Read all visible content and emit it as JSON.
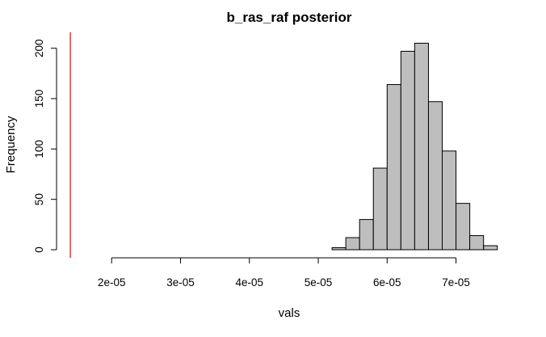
{
  "chart_data": {
    "type": "bar",
    "title": "b_ras_raf posterior",
    "xlabel": "vals",
    "ylabel": "Frequency",
    "bar_color": "#bebebe",
    "reference_line_color": "#df2020",
    "reference_line_x": 1.4e-05,
    "xlim": [
      1.2e-05,
      7.65e-05
    ],
    "ylim": [
      0,
      215
    ],
    "x_ticks": [
      2e-05,
      3e-05,
      4e-05,
      5e-05,
      6e-05,
      7e-05
    ],
    "x_tick_labels": [
      "2e-05",
      "3e-05",
      "4e-05",
      "5e-05",
      "6e-05",
      "7e-05"
    ],
    "y_ticks": [
      0,
      50,
      100,
      150,
      200
    ],
    "y_tick_labels": [
      "0",
      "50",
      "100",
      "150",
      "200"
    ],
    "bin_width": 2e-06,
    "bins": [
      {
        "start": 5.2e-05,
        "end": 5.4e-05,
        "count": 2
      },
      {
        "start": 5.4e-05,
        "end": 5.6e-05,
        "count": 12
      },
      {
        "start": 5.6e-05,
        "end": 5.8e-05,
        "count": 30
      },
      {
        "start": 5.8e-05,
        "end": 6e-05,
        "count": 81
      },
      {
        "start": 6e-05,
        "end": 6.2e-05,
        "count": 164
      },
      {
        "start": 6.2e-05,
        "end": 6.4e-05,
        "count": 197
      },
      {
        "start": 6.4e-05,
        "end": 6.6e-05,
        "count": 205
      },
      {
        "start": 6.6e-05,
        "end": 6.8e-05,
        "count": 147
      },
      {
        "start": 6.8e-05,
        "end": 7e-05,
        "count": 98
      },
      {
        "start": 7e-05,
        "end": 7.2e-05,
        "count": 46
      },
      {
        "start": 7.2e-05,
        "end": 7.4e-05,
        "count": 14
      },
      {
        "start": 7.4e-05,
        "end": 7.6e-05,
        "count": 4
      }
    ]
  }
}
